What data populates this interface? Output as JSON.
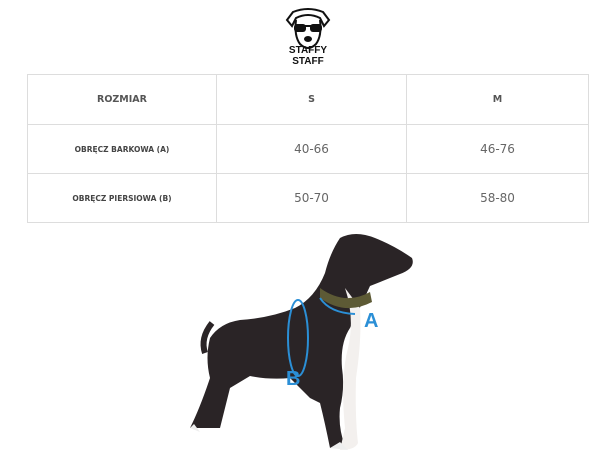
{
  "logo": {
    "line1": "STAFFY",
    "line2": "STAFF"
  },
  "table": {
    "headers": [
      "ROZMIAR",
      "S",
      "M"
    ],
    "rows": [
      {
        "label": "OBRĘCZ BARKOWA (A)",
        "s": "40-66",
        "m": "46-76"
      },
      {
        "label": "OBRĘCZ PIERSIOWA (B)",
        "s": "50-70",
        "m": "58-80"
      }
    ]
  },
  "diagram": {
    "mark_a": "A",
    "mark_b": "B",
    "accent_color": "#2b8fd6"
  }
}
